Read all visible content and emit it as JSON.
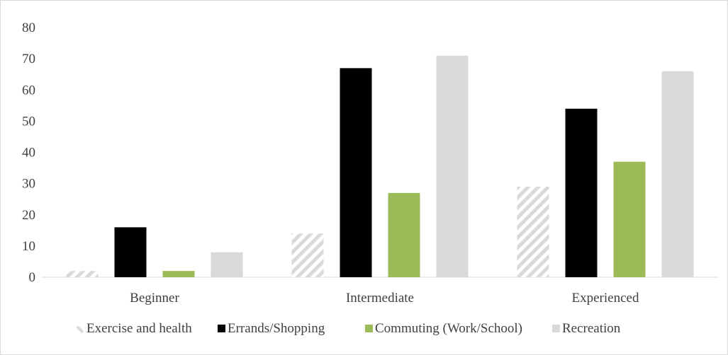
{
  "chart_data": {
    "type": "bar",
    "title": "",
    "xlabel": "",
    "ylabel": "",
    "ylim": [
      0,
      80
    ],
    "yticks": [
      0,
      10,
      20,
      30,
      40,
      50,
      60,
      70,
      80
    ],
    "grid": false,
    "legend_position": "bottom",
    "categories": [
      "Beginner",
      "Intermediate",
      "Experienced"
    ],
    "series": [
      {
        "name": "Exercise and health",
        "values": [
          2,
          14,
          29
        ],
        "color": "#d9d9d9",
        "pattern": "diagonal-hatch"
      },
      {
        "name": "Errands/Shopping",
        "values": [
          16,
          67,
          54
        ],
        "color": "#000000",
        "pattern": "solid"
      },
      {
        "name": "Commuting (Work/School)",
        "values": [
          2,
          27,
          37
        ],
        "color": "#9bbb59",
        "pattern": "solid"
      },
      {
        "name": "Recreation",
        "values": [
          8,
          71,
          66
        ],
        "color": "#d9d9d9",
        "pattern": "solid"
      }
    ]
  }
}
